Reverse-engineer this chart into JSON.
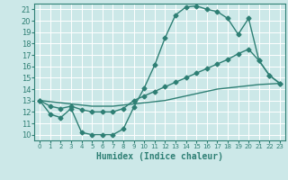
{
  "xlabel": "Humidex (Indice chaleur)",
  "xlim": [
    -0.5,
    23.5
  ],
  "ylim": [
    9.5,
    21.5
  ],
  "xticks": [
    0,
    1,
    2,
    3,
    4,
    5,
    6,
    7,
    8,
    9,
    10,
    11,
    12,
    13,
    14,
    15,
    16,
    17,
    18,
    19,
    20,
    21,
    22,
    23
  ],
  "yticks": [
    10,
    11,
    12,
    13,
    14,
    15,
    16,
    17,
    18,
    19,
    20,
    21
  ],
  "bg_color": "#cce8e8",
  "line_color": "#2e7f74",
  "line1_x": [
    0,
    1,
    2,
    3,
    4,
    5,
    6,
    7,
    8,
    9,
    10,
    11,
    12,
    13,
    14,
    15,
    16,
    17,
    18,
    19,
    20,
    21,
    22,
    23
  ],
  "line1_y": [
    13.0,
    11.8,
    11.5,
    12.3,
    10.2,
    10.0,
    10.0,
    10.0,
    10.5,
    12.4,
    14.1,
    16.1,
    18.5,
    20.5,
    21.2,
    21.3,
    21.0,
    20.8,
    20.2,
    18.8,
    20.2,
    16.5,
    15.2,
    14.5
  ],
  "line2_x": [
    0,
    1,
    2,
    3,
    4,
    5,
    6,
    7,
    8,
    9,
    10,
    11,
    12,
    13,
    14,
    15,
    16,
    17,
    18,
    19,
    20,
    21,
    22,
    23
  ],
  "line2_y": [
    13.0,
    12.9,
    12.8,
    12.7,
    12.6,
    12.5,
    12.5,
    12.5,
    12.6,
    12.7,
    12.8,
    12.9,
    13.0,
    13.2,
    13.4,
    13.6,
    13.8,
    14.0,
    14.1,
    14.2,
    14.3,
    14.4,
    14.45,
    14.5
  ],
  "line3_x": [
    0,
    1,
    2,
    3,
    4,
    5,
    6,
    7,
    8,
    9,
    10,
    11,
    12,
    13,
    14,
    15,
    16,
    17,
    18,
    19,
    20,
    21,
    22,
    23
  ],
  "line3_y": [
    13.0,
    12.5,
    12.3,
    12.5,
    12.2,
    12.0,
    12.0,
    12.0,
    12.3,
    13.0,
    13.4,
    13.8,
    14.2,
    14.6,
    15.0,
    15.4,
    15.8,
    16.2,
    16.6,
    17.1,
    17.5,
    16.5,
    15.2,
    14.5
  ]
}
